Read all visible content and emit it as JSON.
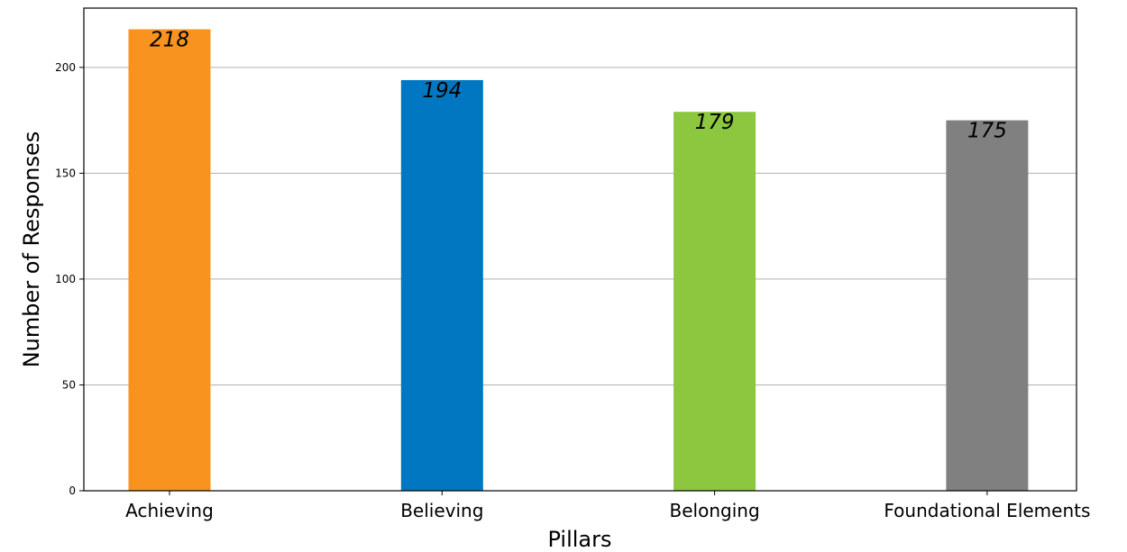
{
  "chart_data": {
    "type": "bar",
    "title": "",
    "xlabel": "Pillars",
    "ylabel": "Number of Responses",
    "categories": [
      "Achieving",
      "Believing",
      "Belonging",
      "Foundational Elements"
    ],
    "values": [
      218,
      194,
      179,
      175
    ],
    "colors": [
      "#f7931e",
      "#0077c0",
      "#8dc63f",
      "#808080"
    ],
    "data_labels": [
      "218",
      "194",
      "179",
      "175"
    ],
    "ylim": [
      0,
      228
    ],
    "yticks": [
      0,
      50,
      100,
      150,
      200
    ],
    "grid": "horizontal",
    "legend": "none"
  }
}
